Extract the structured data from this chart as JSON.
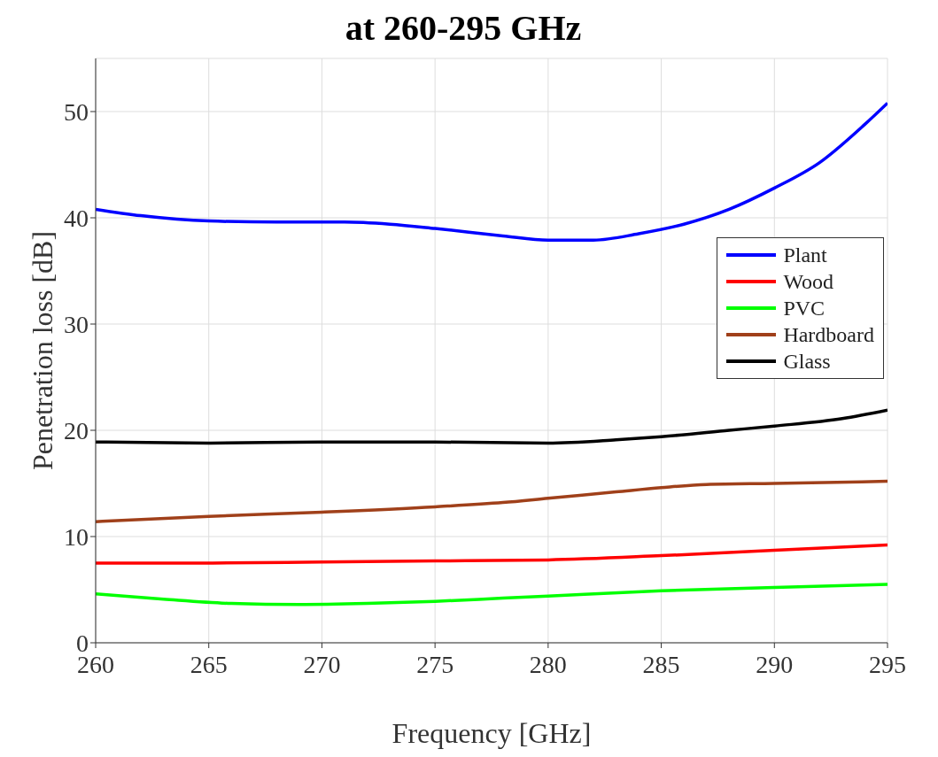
{
  "chart_data": {
    "type": "line",
    "title": "at 260-295 GHz",
    "xlabel": "Frequency [GHz]",
    "ylabel": "Penetration loss [dB]",
    "xlim": [
      260,
      295
    ],
    "xticks": [
      260,
      265,
      270,
      275,
      280,
      285,
      290,
      295
    ],
    "ylim": [
      0,
      55
    ],
    "yticks": [
      0,
      10,
      20,
      30,
      40,
      50
    ],
    "grid": true,
    "legend": "right",
    "marker": "none",
    "line_style": "solid",
    "series": [
      {
        "name": "Plant",
        "color": "#0000ff",
        "x": [
          260,
          262,
          265,
          268,
          271,
          273,
          275,
          278,
          280,
          282,
          284,
          286,
          288,
          290,
          292,
          294,
          295
        ],
        "values": [
          40.8,
          40.2,
          39.7,
          39.6,
          39.6,
          39.4,
          39.0,
          38.3,
          37.9,
          37.9,
          38.5,
          39.4,
          40.8,
          42.8,
          45.2,
          48.8,
          50.8
        ]
      },
      {
        "name": "Wood",
        "color": "#ff0000",
        "x": [
          260,
          265,
          270,
          275,
          280,
          285,
          290,
          295
        ],
        "values": [
          7.5,
          7.5,
          7.6,
          7.7,
          7.8,
          8.2,
          8.7,
          9.2
        ]
      },
      {
        "name": "PVC",
        "color": "#00ff00",
        "x": [
          260,
          263,
          266,
          269,
          272,
          275,
          278,
          280,
          285,
          290,
          295
        ],
        "values": [
          4.6,
          4.1,
          3.7,
          3.6,
          3.7,
          3.9,
          4.2,
          4.4,
          4.9,
          5.2,
          5.5
        ]
      },
      {
        "name": "Hardboard",
        "color": "#a0401a",
        "x": [
          260,
          265,
          270,
          275,
          278,
          280,
          283,
          285,
          287,
          290,
          295
        ],
        "values": [
          11.4,
          11.9,
          12.3,
          12.8,
          13.2,
          13.6,
          14.2,
          14.6,
          14.9,
          15.0,
          15.2
        ]
      },
      {
        "name": "Glass",
        "color": "#000000",
        "x": [
          260,
          265,
          270,
          275,
          280,
          283,
          285,
          288,
          290,
          293,
          295
        ],
        "values": [
          18.9,
          18.8,
          18.9,
          18.9,
          18.8,
          19.1,
          19.4,
          20.0,
          20.4,
          21.1,
          21.9
        ]
      }
    ]
  }
}
